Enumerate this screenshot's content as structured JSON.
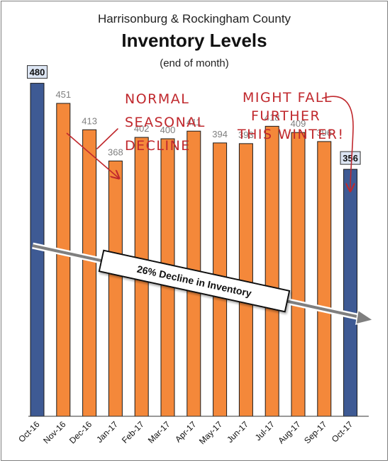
{
  "header": {
    "subtitle": "Harrisonburg & Rockingham County",
    "title": "Inventory Levels",
    "note": "(end of month)"
  },
  "annotations": {
    "left_lines": [
      "NORMAL",
      "SEASONAL",
      "DECLINE"
    ],
    "right_lines": [
      "MIGHT FALL",
      "FURTHER",
      "THIS WINTER!"
    ],
    "trend_label": "26% Decline in Inventory"
  },
  "colors": {
    "highlight_bar": "#3e5a94",
    "regular_bar": "#f4883a",
    "annotation": "#c0282d",
    "trend_arrow": "#7f7f7f"
  },
  "chart_data": {
    "type": "bar",
    "title": "Inventory Levels",
    "subtitle": "Harrisonburg & Rockingham County",
    "categories": [
      "Oct-16",
      "Nov-16",
      "Dec-16",
      "Jan-17",
      "Feb-17",
      "Mar-17",
      "Apr-17",
      "May-17",
      "Jun-17",
      "Jul-17",
      "Aug-17",
      "Sep-17",
      "Oct-17"
    ],
    "values": [
      480,
      451,
      413,
      368,
      402,
      400,
      411,
      394,
      393,
      418,
      409,
      396,
      356
    ],
    "highlighted": [
      "Oct-16",
      "Oct-17"
    ],
    "xlabel": "",
    "ylabel": "",
    "ylim": [
      0,
      500
    ],
    "grid": false,
    "legend": "none"
  }
}
